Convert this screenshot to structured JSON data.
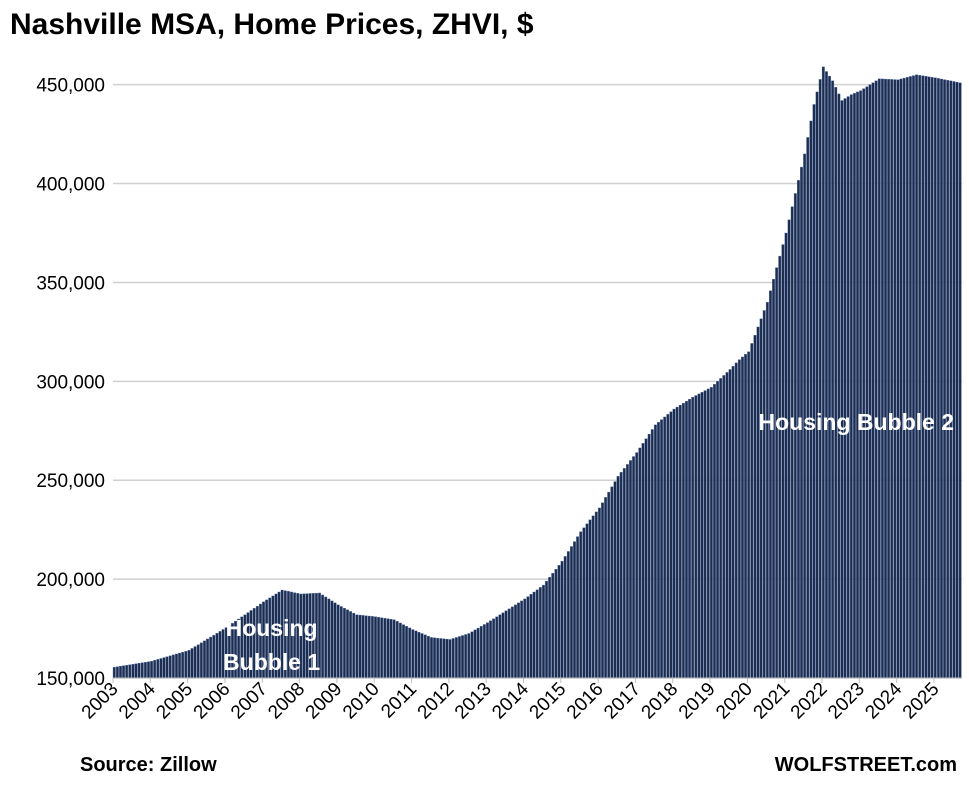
{
  "chart_data": {
    "type": "bar",
    "title": "Nashville MSA, Home Prices, ZHVI, $",
    "xlabel": "",
    "ylabel": "",
    "ylim": [
      150000,
      465000
    ],
    "yticks": [
      "150,000",
      "200,000",
      "250,000",
      "300,000",
      "350,000",
      "400,000",
      "450,000"
    ],
    "ytick_values": [
      150000,
      200000,
      250000,
      300000,
      350000,
      400000,
      450000
    ],
    "xticks": [
      "2003",
      "2004",
      "2005",
      "2006",
      "2007",
      "2008",
      "2009",
      "2010",
      "2011",
      "2012",
      "2013",
      "2014",
      "2015",
      "2016",
      "2017",
      "2018",
      "2019",
      "2020",
      "2021",
      "2022",
      "2023",
      "2024",
      "2025"
    ],
    "frequency": "monthly",
    "start": "2003-01",
    "end": "2025-09",
    "anchors": [
      [
        "2003-01",
        155500
      ],
      [
        "2004-01",
        158500
      ],
      [
        "2005-01",
        164000
      ],
      [
        "2006-01",
        175500
      ],
      [
        "2007-01",
        188500
      ],
      [
        "2007-07",
        194500
      ],
      [
        "2008-01",
        192500
      ],
      [
        "2008-07",
        193000
      ],
      [
        "2009-01",
        187000
      ],
      [
        "2009-07",
        182000
      ],
      [
        "2010-01",
        181000
      ],
      [
        "2010-07",
        179500
      ],
      [
        "2011-01",
        174500
      ],
      [
        "2011-07",
        170500
      ],
      [
        "2012-01",
        169500
      ],
      [
        "2012-07",
        172500
      ],
      [
        "2013-01",
        178000
      ],
      [
        "2013-07",
        184000
      ],
      [
        "2014-01",
        190000
      ],
      [
        "2014-07",
        197000
      ],
      [
        "2015-01",
        209000
      ],
      [
        "2015-07",
        224000
      ],
      [
        "2016-01",
        236000
      ],
      [
        "2016-07",
        252000
      ],
      [
        "2017-01",
        264000
      ],
      [
        "2017-07",
        278000
      ],
      [
        "2018-01",
        286000
      ],
      [
        "2018-07",
        292000
      ],
      [
        "2019-01",
        297000
      ],
      [
        "2019-07",
        306000
      ],
      [
        "2019-10",
        311000
      ],
      [
        "2020-01",
        315000
      ],
      [
        "2020-07",
        340000
      ],
      [
        "2021-01",
        375000
      ],
      [
        "2021-07",
        415000
      ],
      [
        "2021-10",
        440000
      ],
      [
        "2022-01",
        459000
      ],
      [
        "2022-04",
        452000
      ],
      [
        "2022-07",
        442000
      ],
      [
        "2022-10",
        445000
      ],
      [
        "2023-01",
        447000
      ],
      [
        "2023-07",
        453000
      ],
      [
        "2024-01",
        452500
      ],
      [
        "2024-07",
        455000
      ],
      [
        "2025-01",
        453500
      ],
      [
        "2025-09",
        451000
      ]
    ],
    "annotations": [
      {
        "lines": [
          "Housing",
          "Bubble 1"
        ],
        "anchor": "2007-04"
      },
      {
        "lines": [
          "Housing Bubble 2"
        ],
        "anchor": "2019-01"
      }
    ],
    "bar_color": "#1f2d4a",
    "grid": true
  },
  "footer": {
    "source": "Source: Zillow",
    "brand": "WOLFSTREET.com"
  }
}
